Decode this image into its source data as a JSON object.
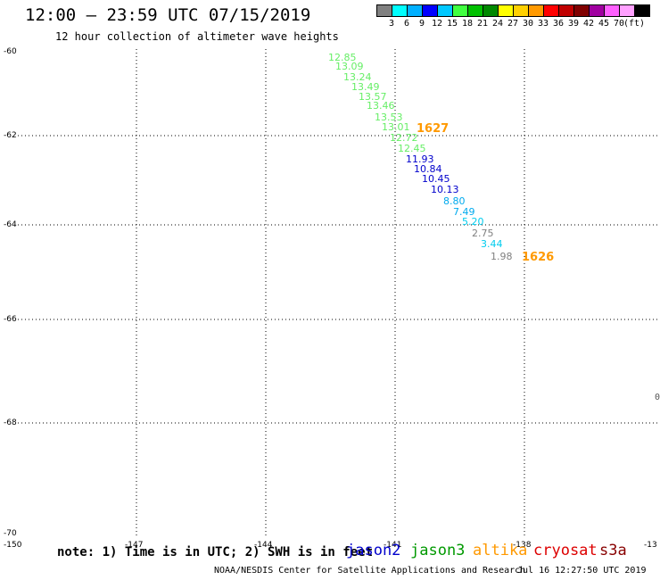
{
  "header": {
    "title": "12:00 — 23:59 UTC 07/15/2019",
    "subtitle": "12 hour collection of altimeter wave heights"
  },
  "colorbar": {
    "colors": [
      "#808080",
      "#00ffff",
      "#00b0ff",
      "#0000ff",
      "#00c8ff",
      "#40ff40",
      "#00c000",
      "#008800",
      "#ffff00",
      "#ffd000",
      "#ff9900",
      "#ff0000",
      "#c00000",
      "#800000",
      "#a000a0",
      "#ff60ff",
      "#ffa0ff",
      "#000000"
    ],
    "labels": [
      "3",
      "6",
      "9",
      "12",
      "15",
      "18",
      "21",
      "24",
      "27",
      "30",
      "33",
      "36",
      "39",
      "42",
      "45",
      "70",
      "(ft)"
    ]
  },
  "map": {
    "lat_labels": [
      "-60",
      "-62",
      "-64",
      "-66",
      "-68",
      "-70"
    ],
    "lon_labels": [
      "-150",
      "-147",
      "-144",
      "-141",
      "-138",
      "-13"
    ],
    "observations": [
      {
        "v": "12.85",
        "c": "#66ee66"
      },
      {
        "v": "13.09",
        "c": "#66ee66"
      },
      {
        "v": "13.24",
        "c": "#66ee66"
      },
      {
        "v": "13.49",
        "c": "#66ee66"
      },
      {
        "v": "13.57",
        "c": "#66ee66"
      },
      {
        "v": "13.46",
        "c": "#66ee66"
      },
      {
        "v": "13.53",
        "c": "#66ee66"
      },
      {
        "v": "13.01",
        "c": "#66ee66"
      },
      {
        "v": "12.72",
        "c": "#66ee66"
      },
      {
        "v": "12.45",
        "c": "#66ee66"
      },
      {
        "v": "11.93",
        "c": "#0000cc"
      },
      {
        "v": "10.84",
        "c": "#0000cc"
      },
      {
        "v": "10.45",
        "c": "#0000cc"
      },
      {
        "v": "10.13",
        "c": "#0000cc"
      },
      {
        "v": "8.80",
        "c": "#00aaee"
      },
      {
        "v": "7.49",
        "c": "#00aaee"
      },
      {
        "v": "5.20",
        "c": "#00ccee"
      },
      {
        "v": "2.75",
        "c": "#808080"
      },
      {
        "v": "3.44",
        "c": "#00ccee"
      },
      {
        "v": "1.98",
        "c": "#808080"
      }
    ],
    "times": [
      {
        "t": "1627",
        "c": "#ff9900"
      },
      {
        "t": "1626",
        "c": "#ff9900"
      }
    ]
  },
  "footer": {
    "note": "note: 1) Time is in UTC; 2) SWH is in feet",
    "satellites": [
      {
        "name": "jason2",
        "color": "#0000cc"
      },
      {
        "name": "jason3",
        "color": "#009900"
      },
      {
        "name": "altika",
        "color": "#ff9900"
      },
      {
        "name": "cryosat",
        "color": "#dd0000"
      },
      {
        "name": "s3a",
        "color": "#880000"
      }
    ],
    "credit": "NOAA/NESDIS Center for Satellite Applications and Research",
    "timestamp": "Jul 16 12:27:50 UTC 2019"
  },
  "edge_text": "0"
}
